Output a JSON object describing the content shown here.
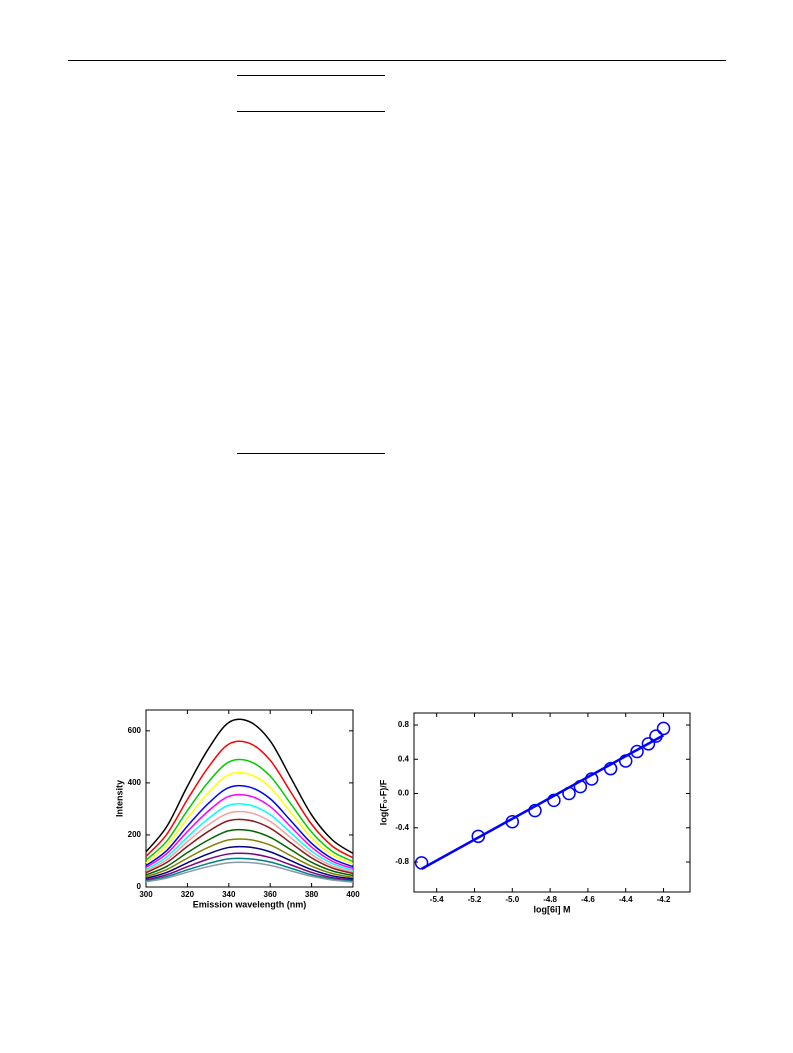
{
  "chart_data": [
    {
      "type": "line",
      "x": [
        300,
        310,
        320,
        330,
        340,
        350,
        360,
        370,
        380,
        390,
        400
      ],
      "series": [
        {
          "color": "#000000",
          "values": [
            135,
            232,
            387,
            529,
            632,
            635,
            561,
            419,
            277,
            181,
            129
          ]
        },
        {
          "color": "#ff0000",
          "values": [
            118,
            202,
            336,
            459,
            549,
            552,
            487,
            364,
            241,
            157,
            112
          ]
        },
        {
          "color": "#00cc00",
          "values": [
            103,
            176,
            294,
            402,
            480,
            483,
            426,
            319,
            211,
            137,
            98
          ]
        },
        {
          "color": "#ffff00",
          "values": [
            92,
            158,
            264,
            361,
            431,
            433,
            383,
            286,
            189,
            123,
            88
          ]
        },
        {
          "color": "#0000ff",
          "values": [
            82,
            140,
            234,
            320,
            382,
            384,
            339,
            254,
            168,
            109,
            78
          ]
        },
        {
          "color": "#ff00ff",
          "values": [
            75,
            128,
            213,
            291,
            348,
            350,
            309,
            231,
            153,
            99,
            71
          ]
        },
        {
          "color": "#00ffff",
          "values": [
            67,
            115,
            192,
            262,
            314,
            315,
            278,
            208,
            138,
            90,
            64
          ]
        },
        {
          "color": "#f4a0a0",
          "values": [
            61,
            104,
            174,
            238,
            284,
            286,
            252,
            189,
            125,
            81,
            58
          ]
        },
        {
          "color": "#8b1a1a",
          "values": [
            55,
            94,
            156,
            213,
            255,
            256,
            226,
            169,
            112,
            73,
            52
          ]
        },
        {
          "color": "#006400",
          "values": [
            46,
            79,
            132,
            180,
            216,
            217,
            191,
            143,
            95,
            62,
            44
          ]
        },
        {
          "color": "#808000",
          "values": [
            39,
            67,
            111,
            152,
            181,
            182,
            161,
            120,
            80,
            52,
            37
          ]
        },
        {
          "color": "#000080",
          "values": [
            33,
            56,
            93,
            127,
            152,
            153,
            135,
            101,
            67,
            43,
            31
          ]
        },
        {
          "color": "#800080",
          "values": [
            27,
            47,
            78,
            107,
            127,
            128,
            113,
            85,
            56,
            36,
            26
          ]
        },
        {
          "color": "#008080",
          "values": [
            23,
            40,
            66,
            90,
            108,
            108,
            96,
            72,
            47,
            31,
            22
          ]
        },
        {
          "color": "#8899aa",
          "values": [
            20,
            34,
            57,
            78,
            93,
            94,
            83,
            62,
            41,
            27,
            19
          ]
        }
      ],
      "xlim": [
        300,
        400
      ],
      "xticks": [
        300,
        320,
        340,
        360,
        380,
        400
      ],
      "ylim": [
        0,
        680
      ],
      "yticks": [
        0,
        200,
        400,
        600
      ],
      "xlabel": "Emission wavelength (nm)",
      "ylabel": "Intensity"
    },
    {
      "type": "scatter",
      "x": [
        -5.48,
        -5.18,
        -5.0,
        -4.88,
        -4.78,
        -4.7,
        -4.64,
        -4.58,
        -4.48,
        -4.4,
        -4.34,
        -4.28,
        -4.24,
        -4.2
      ],
      "series": [
        {
          "color": "#0000ff",
          "values": [
            -0.81,
            -0.5,
            -0.33,
            -0.2,
            -0.08,
            0.0,
            0.08,
            0.17,
            0.29,
            0.38,
            0.49,
            0.58,
            0.67,
            0.76
          ]
        }
      ],
      "fit": {
        "x": [
          -5.48,
          -4.2
        ],
        "values": [
          -0.88,
          0.68
        ]
      },
      "xlim": [
        -5.52,
        -4.06
      ],
      "xticks": [
        -5.4,
        -5.2,
        {
          "value": -5.0,
          "label": "-5.0"
        },
        -4.8,
        -4.6,
        -4.4,
        -4.2
      ],
      "ylim": [
        -1.15,
        0.94
      ],
      "yticks": [
        -0.8,
        -0.4,
        {
          "value": 0,
          "label": "0.0"
        },
        0.4,
        0.8
      ],
      "xlabel": "log[6i] M",
      "ylabel": "log(F₀-F)/F"
    }
  ]
}
